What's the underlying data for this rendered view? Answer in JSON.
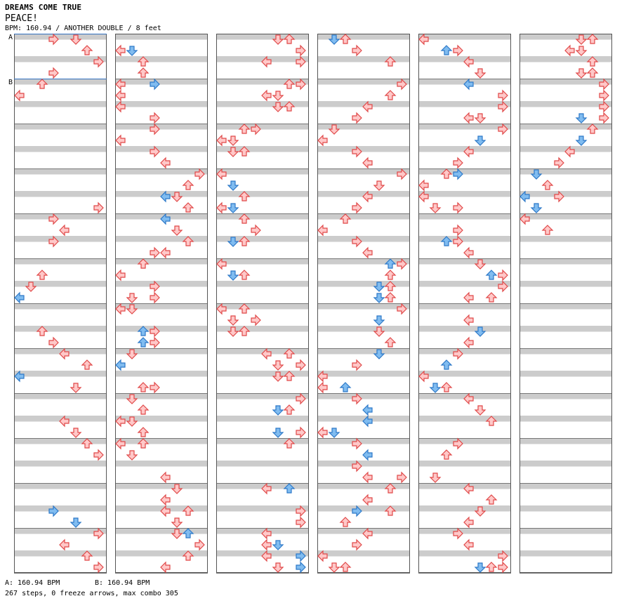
{
  "header": {
    "title": "DREAMS COME TRUE",
    "subtitle": "PEACE!",
    "meta": "BPM: 160.94 / ANOTHER DOUBLE / 8 feet"
  },
  "footer": {
    "bpm_a": "A: 160.94 BPM",
    "bpm_b": "B: 160.94 BPM",
    "stats": "267 steps, 0 freeze arrows, max combo 305"
  },
  "markers": [
    {
      "label": "A",
      "column": 1,
      "row": 0
    },
    {
      "label": "B",
      "column": 1,
      "row": 4
    }
  ],
  "colors": {
    "stripe": "#cccccc",
    "border": "#555555",
    "arrow_red_fill": "#ffc8c8",
    "arrow_red_stroke": "#e04848",
    "arrow_blue_fill": "#80bcf0",
    "arrow_blue_stroke": "#2c78c8",
    "marker_line": "#3070c0"
  },
  "chart_data": {
    "type": "step-chart",
    "columns": 6,
    "rows_per_column": 48,
    "lanes": 8,
    "arrows": [
      [
        1,
        3,
        0,
        "r"
      ],
      [
        1,
        5,
        0,
        "r"
      ],
      [
        1,
        6,
        1,
        "r"
      ],
      [
        1,
        7,
        2,
        "r"
      ],
      [
        1,
        3,
        3,
        "r"
      ],
      [
        1,
        2,
        4,
        "r"
      ],
      [
        1,
        0,
        5,
        "r"
      ],
      [
        1,
        7,
        15,
        "r"
      ],
      [
        1,
        3,
        16,
        "r"
      ],
      [
        1,
        4,
        17,
        "r"
      ],
      [
        1,
        3,
        18,
        "r"
      ],
      [
        1,
        2,
        21,
        "r"
      ],
      [
        1,
        1,
        22,
        "r"
      ],
      [
        1,
        0,
        23,
        "b"
      ],
      [
        1,
        2,
        26,
        "r"
      ],
      [
        1,
        3,
        27,
        "r"
      ],
      [
        1,
        4,
        28,
        "r"
      ],
      [
        1,
        6,
        29,
        "r"
      ],
      [
        1,
        0,
        30,
        "b"
      ],
      [
        1,
        5,
        31,
        "r"
      ],
      [
        1,
        4,
        34,
        "r"
      ],
      [
        1,
        5,
        35,
        "r"
      ],
      [
        1,
        6,
        36,
        "r"
      ],
      [
        1,
        7,
        37,
        "r"
      ],
      [
        1,
        3,
        42,
        "b"
      ],
      [
        1,
        5,
        43,
        "b"
      ],
      [
        1,
        7,
        44,
        "r"
      ],
      [
        1,
        4,
        45,
        "r"
      ],
      [
        1,
        6,
        46,
        "r"
      ],
      [
        1,
        7,
        47,
        "r"
      ],
      [
        2,
        0,
        1,
        "r"
      ],
      [
        2,
        1,
        1,
        "b"
      ],
      [
        2,
        2,
        2,
        "r"
      ],
      [
        2,
        2,
        3,
        "r"
      ],
      [
        2,
        3,
        4,
        "b"
      ],
      [
        2,
        0,
        4,
        "r"
      ],
      [
        2,
        0,
        5,
        "r"
      ],
      [
        2,
        0,
        6,
        "r"
      ],
      [
        2,
        3,
        7,
        "r"
      ],
      [
        2,
        3,
        8,
        "r"
      ],
      [
        2,
        0,
        9,
        "r"
      ],
      [
        2,
        3,
        10,
        "r"
      ],
      [
        2,
        4,
        11,
        "r"
      ],
      [
        2,
        7,
        12,
        "r"
      ],
      [
        2,
        6,
        13,
        "r"
      ],
      [
        2,
        4,
        14,
        "b"
      ],
      [
        2,
        5,
        14,
        "r"
      ],
      [
        2,
        6,
        15,
        "r"
      ],
      [
        2,
        4,
        16,
        "b"
      ],
      [
        2,
        5,
        17,
        "r"
      ],
      [
        2,
        6,
        18,
        "r"
      ],
      [
        2,
        3,
        19,
        "r"
      ],
      [
        2,
        4,
        19,
        "r"
      ],
      [
        2,
        2,
        20,
        "r"
      ],
      [
        2,
        0,
        21,
        "r"
      ],
      [
        2,
        3,
        22,
        "r"
      ],
      [
        2,
        1,
        23,
        "r"
      ],
      [
        2,
        3,
        23,
        "r"
      ],
      [
        2,
        0,
        24,
        "r"
      ],
      [
        2,
        1,
        24,
        "r"
      ],
      [
        2,
        2,
        26,
        "b"
      ],
      [
        2,
        3,
        26,
        "r"
      ],
      [
        2,
        2,
        27,
        "b"
      ],
      [
        2,
        3,
        27,
        "r"
      ],
      [
        2,
        1,
        28,
        "r"
      ],
      [
        2,
        0,
        29,
        "b"
      ],
      [
        2,
        2,
        31,
        "r"
      ],
      [
        2,
        3,
        31,
        "r"
      ],
      [
        2,
        1,
        32,
        "r"
      ],
      [
        2,
        2,
        33,
        "r"
      ],
      [
        2,
        0,
        34,
        "r"
      ],
      [
        2,
        1,
        34,
        "r"
      ],
      [
        2,
        2,
        35,
        "r"
      ],
      [
        2,
        0,
        36,
        "r"
      ],
      [
        2,
        2,
        36,
        "r"
      ],
      [
        2,
        1,
        37,
        "r"
      ],
      [
        2,
        4,
        39,
        "r"
      ],
      [
        2,
        5,
        40,
        "r"
      ],
      [
        2,
        4,
        41,
        "r"
      ],
      [
        2,
        6,
        42,
        "r"
      ],
      [
        2,
        4,
        42,
        "r"
      ],
      [
        2,
        5,
        43,
        "r"
      ],
      [
        2,
        6,
        44,
        "b"
      ],
      [
        2,
        5,
        44,
        "r"
      ],
      [
        2,
        7,
        45,
        "r"
      ],
      [
        2,
        6,
        46,
        "r"
      ],
      [
        2,
        4,
        47,
        "r"
      ],
      [
        3,
        5,
        0,
        "r"
      ],
      [
        3,
        6,
        0,
        "r"
      ],
      [
        3,
        7,
        1,
        "r"
      ],
      [
        3,
        4,
        2,
        "r"
      ],
      [
        3,
        7,
        2,
        "r"
      ],
      [
        3,
        6,
        4,
        "r"
      ],
      [
        3,
        7,
        4,
        "r"
      ],
      [
        3,
        4,
        5,
        "r"
      ],
      [
        3,
        5,
        5,
        "r"
      ],
      [
        3,
        5,
        6,
        "r"
      ],
      [
        3,
        6,
        6,
        "r"
      ],
      [
        3,
        2,
        8,
        "r"
      ],
      [
        3,
        3,
        8,
        "r"
      ],
      [
        3,
        0,
        9,
        "r"
      ],
      [
        3,
        1,
        9,
        "r"
      ],
      [
        3,
        1,
        10,
        "r"
      ],
      [
        3,
        2,
        10,
        "r"
      ],
      [
        3,
        0,
        12,
        "r"
      ],
      [
        3,
        1,
        13,
        "b"
      ],
      [
        3,
        2,
        14,
        "r"
      ],
      [
        3,
        0,
        15,
        "r"
      ],
      [
        3,
        1,
        15,
        "b"
      ],
      [
        3,
        2,
        16,
        "r"
      ],
      [
        3,
        3,
        17,
        "r"
      ],
      [
        3,
        1,
        18,
        "b"
      ],
      [
        3,
        2,
        18,
        "r"
      ],
      [
        3,
        0,
        20,
        "r"
      ],
      [
        3,
        1,
        21,
        "b"
      ],
      [
        3,
        2,
        21,
        "r"
      ],
      [
        3,
        0,
        24,
        "r"
      ],
      [
        3,
        2,
        24,
        "r"
      ],
      [
        3,
        1,
        25,
        "r"
      ],
      [
        3,
        3,
        25,
        "r"
      ],
      [
        3,
        1,
        26,
        "r"
      ],
      [
        3,
        2,
        26,
        "r"
      ],
      [
        3,
        4,
        28,
        "r"
      ],
      [
        3,
        6,
        28,
        "r"
      ],
      [
        3,
        5,
        29,
        "r"
      ],
      [
        3,
        7,
        29,
        "r"
      ],
      [
        3,
        5,
        30,
        "r"
      ],
      [
        3,
        6,
        30,
        "r"
      ],
      [
        3,
        7,
        32,
        "r"
      ],
      [
        3,
        5,
        33,
        "b"
      ],
      [
        3,
        6,
        33,
        "r"
      ],
      [
        3,
        5,
        35,
        "b"
      ],
      [
        3,
        7,
        35,
        "r"
      ],
      [
        3,
        6,
        36,
        "r"
      ],
      [
        3,
        4,
        40,
        "r"
      ],
      [
        3,
        6,
        40,
        "b"
      ],
      [
        3,
        7,
        42,
        "r"
      ],
      [
        3,
        7,
        43,
        "r"
      ],
      [
        3,
        4,
        44,
        "r"
      ],
      [
        3,
        4,
        45,
        "r"
      ],
      [
        3,
        5,
        45,
        "b"
      ],
      [
        3,
        4,
        46,
        "r"
      ],
      [
        3,
        7,
        46,
        "b"
      ],
      [
        3,
        5,
        47,
        "r"
      ],
      [
        3,
        7,
        47,
        "b"
      ],
      [
        4,
        2,
        0,
        "r"
      ],
      [
        4,
        1,
        0,
        "b"
      ],
      [
        4,
        3,
        1,
        "r"
      ],
      [
        4,
        6,
        2,
        "r"
      ],
      [
        4,
        7,
        4,
        "r"
      ],
      [
        4,
        6,
        5,
        "r"
      ],
      [
        4,
        4,
        6,
        "r"
      ],
      [
        4,
        3,
        7,
        "r"
      ],
      [
        4,
        1,
        8,
        "r"
      ],
      [
        4,
        0,
        9,
        "r"
      ],
      [
        4,
        3,
        10,
        "r"
      ],
      [
        4,
        4,
        11,
        "r"
      ],
      [
        4,
        7,
        12,
        "r"
      ],
      [
        4,
        5,
        13,
        "r"
      ],
      [
        4,
        4,
        14,
        "r"
      ],
      [
        4,
        3,
        15,
        "r"
      ],
      [
        4,
        2,
        16,
        "r"
      ],
      [
        4,
        0,
        17,
        "r"
      ],
      [
        4,
        3,
        18,
        "r"
      ],
      [
        4,
        4,
        19,
        "r"
      ],
      [
        4,
        6,
        20,
        "b"
      ],
      [
        4,
        7,
        20,
        "r"
      ],
      [
        4,
        6,
        21,
        "r"
      ],
      [
        4,
        5,
        22,
        "b"
      ],
      [
        4,
        6,
        22,
        "r"
      ],
      [
        4,
        5,
        23,
        "b"
      ],
      [
        4,
        6,
        23,
        "r"
      ],
      [
        4,
        7,
        24,
        "r"
      ],
      [
        4,
        5,
        25,
        "b"
      ],
      [
        4,
        5,
        26,
        "r"
      ],
      [
        4,
        6,
        27,
        "r"
      ],
      [
        4,
        5,
        28,
        "b"
      ],
      [
        4,
        3,
        29,
        "r"
      ],
      [
        4,
        0,
        30,
        "r"
      ],
      [
        4,
        2,
        31,
        "b"
      ],
      [
        4,
        0,
        31,
        "r"
      ],
      [
        4,
        3,
        32,
        "r"
      ],
      [
        4,
        4,
        33,
        "b"
      ],
      [
        4,
        4,
        34,
        "b"
      ],
      [
        4,
        0,
        35,
        "r"
      ],
      [
        4,
        1,
        35,
        "b"
      ],
      [
        4,
        3,
        36,
        "r"
      ],
      [
        4,
        4,
        37,
        "b"
      ],
      [
        4,
        3,
        38,
        "r"
      ],
      [
        4,
        7,
        39,
        "r"
      ],
      [
        4,
        4,
        39,
        "r"
      ],
      [
        4,
        6,
        40,
        "r"
      ],
      [
        4,
        4,
        41,
        "r"
      ],
      [
        4,
        3,
        42,
        "b"
      ],
      [
        4,
        6,
        42,
        "r"
      ],
      [
        4,
        2,
        43,
        "r"
      ],
      [
        4,
        4,
        44,
        "r"
      ],
      [
        4,
        3,
        45,
        "r"
      ],
      [
        4,
        0,
        46,
        "r"
      ],
      [
        4,
        1,
        47,
        "r"
      ],
      [
        4,
        2,
        47,
        "r"
      ],
      [
        5,
        0,
        0,
        "r"
      ],
      [
        5,
        2,
        1,
        "b"
      ],
      [
        5,
        3,
        1,
        "r"
      ],
      [
        5,
        4,
        2,
        "r"
      ],
      [
        5,
        5,
        3,
        "r"
      ],
      [
        5,
        4,
        4,
        "b"
      ],
      [
        5,
        7,
        5,
        "r"
      ],
      [
        5,
        7,
        6,
        "r"
      ],
      [
        5,
        4,
        7,
        "r"
      ],
      [
        5,
        5,
        7,
        "r"
      ],
      [
        5,
        7,
        8,
        "r"
      ],
      [
        5,
        5,
        9,
        "b"
      ],
      [
        5,
        4,
        10,
        "r"
      ],
      [
        5,
        3,
        11,
        "r"
      ],
      [
        5,
        2,
        12,
        "r"
      ],
      [
        5,
        3,
        12,
        "b"
      ],
      [
        5,
        0,
        13,
        "r"
      ],
      [
        5,
        0,
        14,
        "r"
      ],
      [
        5,
        1,
        15,
        "r"
      ],
      [
        5,
        3,
        15,
        "r"
      ],
      [
        5,
        3,
        17,
        "r"
      ],
      [
        5,
        2,
        18,
        "b"
      ],
      [
        5,
        3,
        18,
        "r"
      ],
      [
        5,
        4,
        19,
        "r"
      ],
      [
        5,
        5,
        20,
        "r"
      ],
      [
        5,
        6,
        21,
        "b"
      ],
      [
        5,
        7,
        21,
        "r"
      ],
      [
        5,
        7,
        22,
        "r"
      ],
      [
        5,
        4,
        23,
        "r"
      ],
      [
        5,
        6,
        23,
        "r"
      ],
      [
        5,
        4,
        25,
        "r"
      ],
      [
        5,
        5,
        26,
        "b"
      ],
      [
        5,
        4,
        27,
        "r"
      ],
      [
        5,
        3,
        28,
        "r"
      ],
      [
        5,
        2,
        29,
        "b"
      ],
      [
        5,
        0,
        30,
        "r"
      ],
      [
        5,
        1,
        31,
        "b"
      ],
      [
        5,
        2,
        31,
        "r"
      ],
      [
        5,
        4,
        32,
        "r"
      ],
      [
        5,
        5,
        33,
        "r"
      ],
      [
        5,
        6,
        34,
        "r"
      ],
      [
        5,
        3,
        36,
        "r"
      ],
      [
        5,
        2,
        37,
        "r"
      ],
      [
        5,
        1,
        39,
        "r"
      ],
      [
        5,
        4,
        40,
        "r"
      ],
      [
        5,
        6,
        41,
        "r"
      ],
      [
        5,
        5,
        42,
        "r"
      ],
      [
        5,
        4,
        43,
        "r"
      ],
      [
        5,
        3,
        44,
        "r"
      ],
      [
        5,
        4,
        45,
        "r"
      ],
      [
        5,
        7,
        46,
        "r"
      ],
      [
        5,
        5,
        47,
        "b"
      ],
      [
        5,
        6,
        47,
        "r"
      ],
      [
        5,
        7,
        47,
        "r"
      ],
      [
        6,
        5,
        0,
        "r"
      ],
      [
        6,
        6,
        0,
        "r"
      ],
      [
        6,
        4,
        1,
        "r"
      ],
      [
        6,
        5,
        1,
        "r"
      ],
      [
        6,
        6,
        2,
        "r"
      ],
      [
        6,
        5,
        3,
        "r"
      ],
      [
        6,
        6,
        3,
        "r"
      ],
      [
        6,
        7,
        4,
        "r"
      ],
      [
        6,
        7,
        5,
        "r"
      ],
      [
        6,
        7,
        6,
        "r"
      ],
      [
        6,
        5,
        7,
        "b"
      ],
      [
        6,
        7,
        7,
        "r"
      ],
      [
        6,
        6,
        8,
        "r"
      ],
      [
        6,
        5,
        9,
        "b"
      ],
      [
        6,
        4,
        10,
        "r"
      ],
      [
        6,
        3,
        11,
        "r"
      ],
      [
        6,
        1,
        12,
        "b"
      ],
      [
        6,
        2,
        13,
        "r"
      ],
      [
        6,
        0,
        14,
        "b"
      ],
      [
        6,
        3,
        14,
        "r"
      ],
      [
        6,
        1,
        15,
        "b"
      ],
      [
        6,
        0,
        16,
        "r"
      ],
      [
        6,
        2,
        17,
        "r"
      ]
    ]
  }
}
